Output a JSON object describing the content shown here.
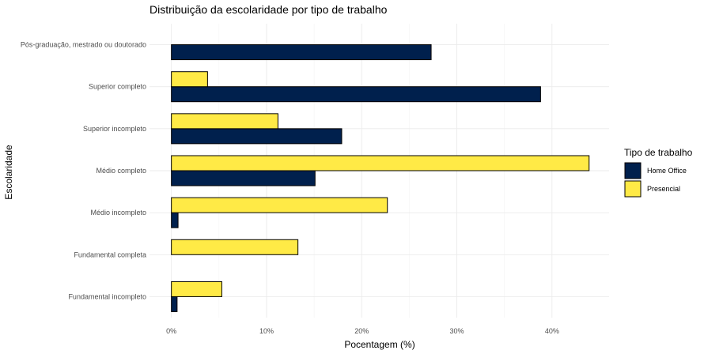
{
  "chart_data": {
    "type": "bar",
    "orientation": "horizontal",
    "title": "Distribuição da escolaridade por tipo de trabalho",
    "xlabel": "Pocentagem (%)",
    "ylabel": "Escolaridade",
    "categories": [
      "Pós-graduação, mestrado ou doutorado",
      "Superior completo",
      "Superior incompleto",
      "Médio completo",
      "Médio incompleto",
      "Fundamental completa",
      "Fundamental incompleto"
    ],
    "series": [
      {
        "name": "Home Office",
        "color": "#00204d",
        "values": [
          27.3,
          38.8,
          17.9,
          15.1,
          0.7,
          0,
          0.6
        ]
      },
      {
        "name": "Presencial",
        "color": "#ffea46",
        "values": [
          0,
          3.8,
          11.2,
          43.9,
          22.7,
          13.3,
          5.3
        ]
      }
    ],
    "xlim": [
      -2.3,
      46.0
    ],
    "xticks": [
      0,
      10,
      20,
      30,
      40
    ],
    "xtick_labels": [
      "0%",
      "10%",
      "20%",
      "30%",
      "40%"
    ],
    "legend": {
      "title": "Tipo de trabalho",
      "position": "right"
    },
    "grid": true
  }
}
